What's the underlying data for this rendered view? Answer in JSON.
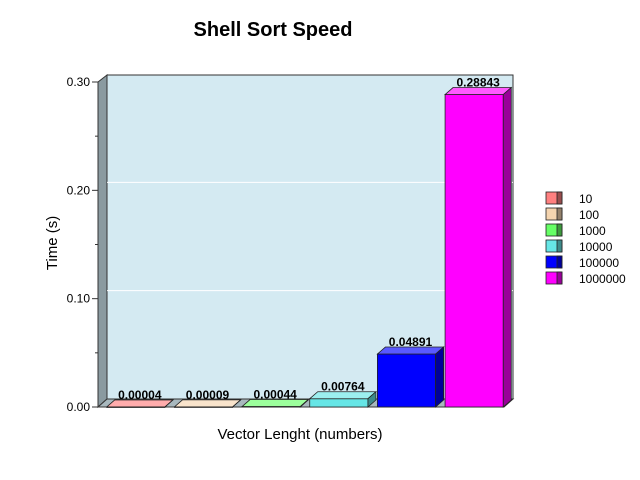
{
  "chart_data": {
    "type": "bar",
    "title": "Shell Sort Speed",
    "xlabel": "Vector Lenght (numbers)",
    "ylabel": "Time (s)",
    "ylim": [
      0,
      0.3
    ],
    "yticks": [
      "0.00",
      "0.10",
      "0.20",
      "0.30"
    ],
    "grid": true,
    "legend_position": "right",
    "categories": [
      "10",
      "100",
      "1000",
      "10000",
      "100000",
      "1000000"
    ],
    "values": [
      4e-05,
      9e-05,
      0.00044,
      0.00764,
      0.04891,
      0.28843
    ],
    "value_labels": [
      "0.00004",
      "0.00009",
      "0.00044",
      "0.00764",
      "0.04891",
      "0.28843"
    ],
    "colors": [
      "#ff8080",
      "#f5d5b0",
      "#66ff66",
      "#66e6e6",
      "#0000ff",
      "#ff00ff"
    ],
    "plot_background": "#d4eaf2"
  }
}
